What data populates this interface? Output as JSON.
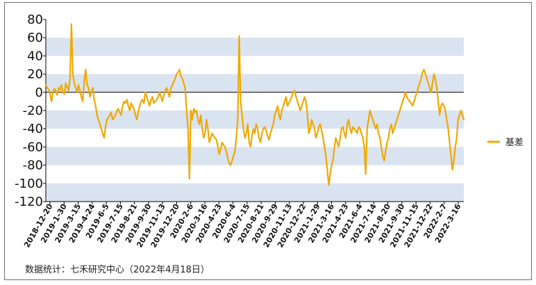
{
  "chart_data": {
    "type": "line",
    "title": "",
    "xlabel": "",
    "ylabel": "",
    "ylim": [
      -120,
      80
    ],
    "yticks": [
      80,
      60,
      40,
      20,
      0,
      -20,
      -40,
      -60,
      -80,
      -100,
      -120
    ],
    "x_tick_labels": [
      "2018-12-20",
      "2019-1-30",
      "2019-3-15",
      "2019-4-24",
      "2019-6-5",
      "2019-7-15",
      "2019-8-21",
      "2019-9-30",
      "2019-11-13",
      "2019-12-20",
      "2020-2-6",
      "2020-3-16",
      "2020-4-23",
      "2020-6-4",
      "2020-7-15",
      "2020-8-21",
      "2020-9-29",
      "2020-11-13",
      "2020-12-22",
      "2021-1-29",
      "2021-3-16",
      "2021-4-23",
      "2021-6-4",
      "2021-7-14",
      "2021-8-20",
      "2021-9-30",
      "2021-11-15",
      "2021-12-22",
      "2022-2-7",
      "2022-3-16"
    ],
    "grid": "alternating horizontal bands",
    "legend_position": "right",
    "colors": {
      "series": "#f0a800",
      "band": "#dae3f0",
      "zero_line": "#000000"
    },
    "series": [
      {
        "name": "基差",
        "values": [
          8,
          5,
          3,
          -2,
          -10,
          0,
          4,
          2,
          -3,
          5,
          3,
          8,
          0,
          -2,
          10,
          6,
          2,
          15,
          75,
          20,
          10,
          5,
          0,
          8,
          2,
          -5,
          -10,
          12,
          25,
          8,
          5,
          -5,
          0,
          5,
          -8,
          -15,
          -25,
          -30,
          -35,
          -40,
          -45,
          -50,
          -38,
          -30,
          -28,
          -25,
          -22,
          -30,
          -28,
          -25,
          -20,
          -18,
          -22,
          -25,
          -15,
          -10,
          -12,
          -8,
          -15,
          -20,
          -12,
          -15,
          -18,
          -25,
          -30,
          -22,
          -15,
          -10,
          -8,
          -12,
          0,
          -5,
          -10,
          -15,
          -8,
          -5,
          -12,
          -10,
          -8,
          -5,
          0,
          -5,
          -10,
          -3,
          2,
          5,
          0,
          -5,
          5,
          8,
          12,
          15,
          20,
          22,
          25,
          18,
          15,
          10,
          5,
          -20,
          -40,
          -95,
          -20,
          -30,
          -18,
          -22,
          -20,
          -30,
          -35,
          -25,
          -40,
          -50,
          -45,
          -30,
          -40,
          -55,
          -50,
          -45,
          -48,
          -50,
          -52,
          -60,
          -68,
          -62,
          -55,
          -58,
          -60,
          -65,
          -72,
          -78,
          -80,
          -75,
          -70,
          -65,
          -50,
          -30,
          62,
          -10,
          -25,
          -40,
          -50,
          -45,
          -35,
          -55,
          -60,
          -48,
          -40,
          -45,
          -35,
          -40,
          -50,
          -55,
          -45,
          -40,
          -38,
          -42,
          -48,
          -52,
          -45,
          -40,
          -35,
          -25,
          -20,
          -15,
          -25,
          -30,
          -20,
          -15,
          -10,
          -5,
          -15,
          -12,
          -8,
          -5,
          0,
          2,
          -5,
          -10,
          -15,
          -20,
          -15,
          -10,
          -5,
          -10,
          -25,
          -45,
          -40,
          -30,
          -35,
          -40,
          -50,
          -45,
          -38,
          -35,
          -42,
          -50,
          -60,
          -70,
          -85,
          -102,
          -90,
          -80,
          -75,
          -60,
          -50,
          -55,
          -60,
          -50,
          -40,
          -38,
          -45,
          -50,
          -35,
          -30,
          -40,
          -45,
          -38,
          -40,
          -42,
          -45,
          -38,
          -40,
          -45,
          -50,
          -60,
          -90,
          -40,
          -30,
          -20,
          -25,
          -30,
          -35,
          -40,
          -35,
          -45,
          -50,
          -60,
          -70,
          -75,
          -65,
          -55,
          -50,
          -40,
          -35,
          -45,
          -40,
          -35,
          -30,
          -25,
          -20,
          -15,
          -10,
          -5,
          0,
          -5,
          -8,
          -10,
          -12,
          -15,
          -10,
          -5,
          0,
          5,
          10,
          15,
          22,
          25,
          20,
          15,
          10,
          5,
          0,
          10,
          20,
          15,
          5,
          -10,
          -25,
          -15,
          -12,
          -15,
          -20,
          -30,
          -40,
          -55,
          -70,
          -85,
          -75,
          -60,
          -50,
          -30,
          -25,
          -20,
          -25,
          -30
        ]
      }
    ]
  },
  "legend": {
    "label": "基差"
  },
  "source_note": "数据统计：七禾研究中心（2022年4月18日）"
}
